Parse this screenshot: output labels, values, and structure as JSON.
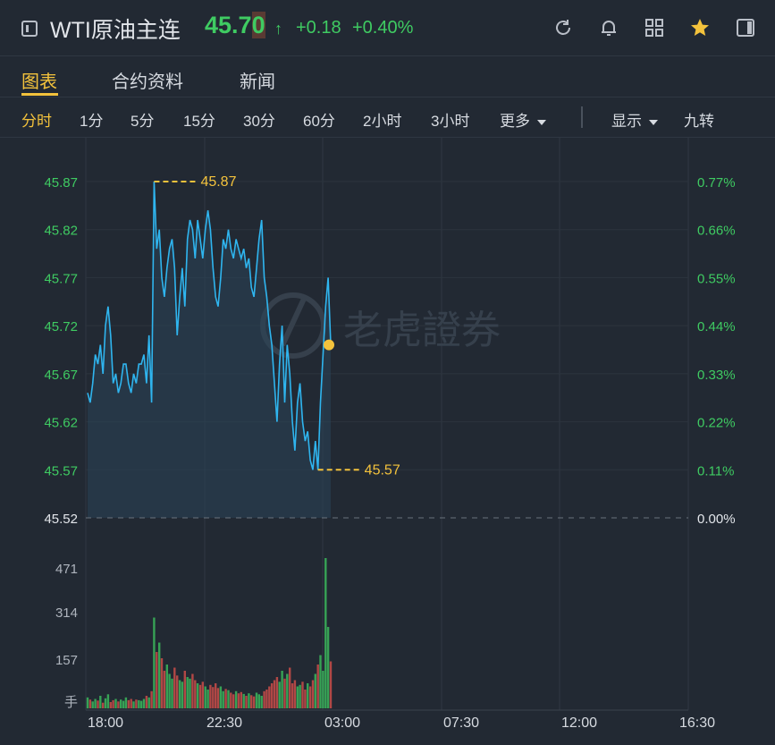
{
  "header": {
    "title": "WTI原油主连",
    "price": "45.70",
    "price_main": "45.7",
    "price_last": "0",
    "arrow": "↑",
    "change": "+0.18",
    "change_pct": "+0.40%",
    "icons": [
      "panel-toggle-icon",
      "refresh-icon",
      "bell-icon",
      "grid-icon",
      "star-icon",
      "sidebar-icon"
    ]
  },
  "tabs": [
    {
      "label": "图表",
      "active": true
    },
    {
      "label": "合约资料",
      "active": false
    },
    {
      "label": "新闻",
      "active": false
    }
  ],
  "periods": {
    "items": [
      "分时",
      "1分",
      "5分",
      "15分",
      "30分",
      "60分",
      "2小时",
      "3小时"
    ],
    "more": "更多",
    "display": "显示",
    "nine": "九转"
  },
  "watermark": "老虎證券",
  "colors": {
    "accent": "#f3c23c",
    "up": "#3fcb62",
    "line": "#2fb5ef",
    "down": "#e2514c"
  },
  "chart_data": {
    "type": "line",
    "price_ticks": [
      "45.87",
      "45.82",
      "45.77",
      "45.72",
      "45.67",
      "45.62",
      "45.57",
      "45.52"
    ],
    "pct_ticks": [
      "0.77%",
      "0.66%",
      "0.55%",
      "0.44%",
      "0.33%",
      "0.22%",
      "0.11%",
      "0.00%"
    ],
    "volume_ticks": [
      "471",
      "314",
      "157"
    ],
    "volume_unit": "手",
    "time_ticks": [
      "18:00",
      "22:30",
      "03:00",
      "07:30",
      "12:00",
      "16:30"
    ],
    "high_label": "45.87",
    "low_label": "45.57",
    "prev_close": 45.52,
    "last": 45.7,
    "ylim": [
      45.52,
      45.87
    ],
    "prices": [
      45.65,
      45.64,
      45.66,
      45.69,
      45.68,
      45.7,
      45.67,
      45.72,
      45.74,
      45.71,
      45.66,
      45.67,
      45.65,
      45.66,
      45.68,
      45.68,
      45.66,
      45.65,
      45.67,
      45.66,
      45.68,
      45.68,
      45.69,
      45.66,
      45.71,
      45.64,
      45.87,
      45.8,
      45.82,
      45.77,
      45.75,
      45.78,
      45.8,
      45.81,
      45.78,
      45.71,
      45.75,
      45.78,
      45.74,
      45.81,
      45.83,
      45.82,
      45.79,
      45.83,
      45.81,
      45.79,
      45.82,
      45.84,
      45.82,
      45.78,
      45.75,
      45.74,
      45.77,
      45.81,
      45.8,
      45.82,
      45.8,
      45.79,
      45.81,
      45.8,
      45.79,
      45.8,
      45.78,
      45.79,
      45.76,
      45.75,
      45.78,
      45.81,
      45.83,
      45.77,
      45.75,
      45.72,
      45.7,
      45.66,
      45.62,
      45.68,
      45.72,
      45.64,
      45.7,
      45.67,
      45.62,
      45.59,
      45.64,
      45.66,
      45.62,
      45.6,
      45.61,
      45.58,
      45.57,
      45.6,
      45.57,
      45.64,
      45.69,
      45.74,
      45.77,
      45.7
    ],
    "volumes": [
      35,
      28,
      22,
      30,
      25,
      40,
      18,
      32,
      45,
      20,
      26,
      30,
      22,
      28,
      24,
      35,
      26,
      30,
      22,
      28,
      26,
      24,
      30,
      40,
      35,
      55,
      290,
      180,
      210,
      160,
      120,
      140,
      110,
      95,
      130,
      105,
      90,
      85,
      120,
      100,
      95,
      110,
      90,
      80,
      75,
      85,
      70,
      60,
      75,
      68,
      80,
      65,
      70,
      55,
      62,
      58,
      50,
      45,
      55,
      48,
      52,
      46,
      40,
      48,
      42,
      38,
      50,
      45,
      40,
      55,
      60,
      70,
      80,
      90,
      100,
      85,
      120,
      95,
      110,
      130,
      80,
      90,
      70,
      75,
      85,
      60,
      80,
      70,
      90,
      110,
      140,
      170,
      120,
      480,
      260,
      150
    ]
  }
}
